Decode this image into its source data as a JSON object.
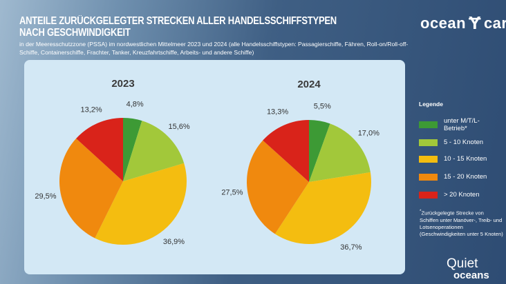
{
  "header": {
    "title_line1": "ANTEILE ZURÜCKGELEGTER STRECKEN ALLER HANDELSSCHIFFSTYPEN",
    "title_line2": "NACH GESCHWINDIGKEIT",
    "subtitle": "in der Meeresschutzzone (PSSA) im nordwestlichen Mittelmeer 2023 und 2024 (alle Handelsschiffstypen: Passagierschiffe, Fähren, Roll-on/Roll-off-Schiffe, Containerschiffe, Frachter, Tanker, Kreuzfahrtschiffe, Arbeits- und andere Schiffe)"
  },
  "logos": {
    "oceancare_left": "ocean",
    "oceancare_right": "care",
    "quiet_top": "Quiet",
    "quiet_bottom": "oceans"
  },
  "legend": {
    "title": "Legende",
    "note": "Zurückgelegte Strecke von Schiffen unter Manöver-, Treib- und Lotsenoperationen (Geschwindigkeiten unter 5 Knoten)",
    "note_mark": "*"
  },
  "chart_data": {
    "type": "pie",
    "categories": [
      "unter M/T/L-Betrieb*",
      "5 - 10 Knoten",
      "10 - 15 Knoten",
      "15 - 20 Knoten",
      "> 20 Knoten"
    ],
    "colors": [
      "#3d9a35",
      "#a2c83a",
      "#f4bd10",
      "#f0890e",
      "#d9231a"
    ],
    "charts": [
      {
        "title": "2023",
        "values": [
          4.8,
          15.6,
          36.9,
          29.5,
          13.2
        ],
        "labels": [
          "4,8%",
          "15,6%",
          "36,9%",
          "29,5%",
          "13,2%"
        ]
      },
      {
        "title": "2024",
        "values": [
          5.5,
          17.0,
          36.7,
          27.5,
          13.3
        ],
        "labels": [
          "5,5%",
          "17,0%",
          "36,7%",
          "27,5%",
          "13,3%"
        ]
      }
    ],
    "legend_position": "right"
  }
}
